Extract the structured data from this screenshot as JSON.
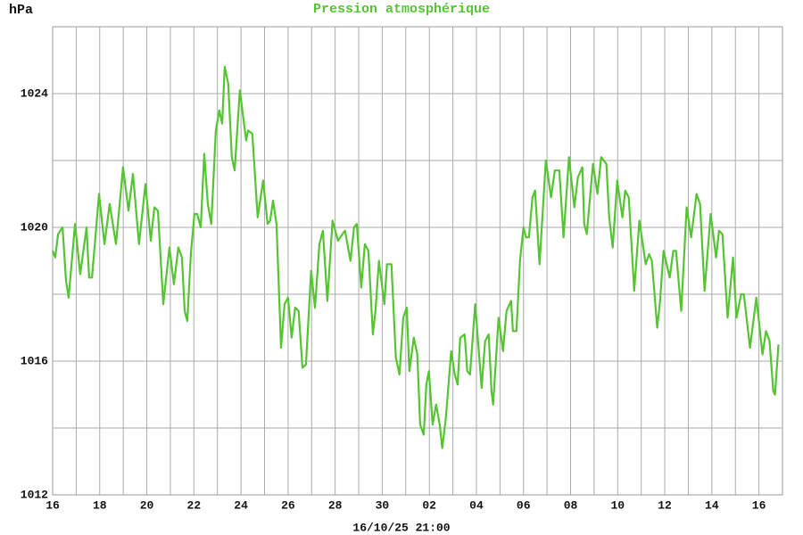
{
  "chart_data": {
    "type": "line",
    "title": "Pression atmosphérique",
    "y_label": "hPa",
    "x_label": "16/10/25 21:00",
    "xlim": [
      0,
      31
    ],
    "ylim": [
      1012,
      1026
    ],
    "xticks": [
      {
        "value": 0,
        "label": "16"
      },
      {
        "value": 2,
        "label": "18"
      },
      {
        "value": 4,
        "label": "20"
      },
      {
        "value": 6,
        "label": "22"
      },
      {
        "value": 8,
        "label": "24"
      },
      {
        "value": 10,
        "label": "26"
      },
      {
        "value": 12,
        "label": "28"
      },
      {
        "value": 14,
        "label": "30"
      },
      {
        "value": 16,
        "label": "02"
      },
      {
        "value": 18,
        "label": "04"
      },
      {
        "value": 20,
        "label": "06"
      },
      {
        "value": 22,
        "label": "08"
      },
      {
        "value": 24,
        "label": "10"
      },
      {
        "value": 26,
        "label": "12"
      },
      {
        "value": 28,
        "label": "14"
      },
      {
        "value": 30,
        "label": "16"
      }
    ],
    "x_minor_ticks": [
      1,
      3,
      5,
      7,
      9,
      11,
      13,
      15,
      17,
      19,
      21,
      23,
      25,
      27,
      29
    ],
    "yticks": [
      1012,
      1016,
      1020,
      1024
    ],
    "y_minor_ticks": [
      1014,
      1018,
      1022
    ],
    "grid": true,
    "series": [
      {
        "name": "Pression",
        "color": "#55c433",
        "x": [
          0,
          0.11,
          0.23,
          0.42,
          0.57,
          0.68,
          0.95,
          1.17,
          1.44,
          1.55,
          1.67,
          1.97,
          2.2,
          2.42,
          2.69,
          2.99,
          3.22,
          3.41,
          3.67,
          3.94,
          4.17,
          4.32,
          4.47,
          4.7,
          4.96,
          5.15,
          5.34,
          5.49,
          5.61,
          5.72,
          5.87,
          6.02,
          6.14,
          6.29,
          6.44,
          6.59,
          6.74,
          6.93,
          7.08,
          7.2,
          7.31,
          7.46,
          7.61,
          7.73,
          7.95,
          8.22,
          8.3,
          8.48,
          8.71,
          8.94,
          9.13,
          9.24,
          9.36,
          9.51,
          9.7,
          9.85,
          10,
          10.15,
          10.3,
          10.45,
          10.61,
          10.76,
          10.98,
          11.14,
          11.33,
          11.48,
          11.67,
          11.89,
          12.12,
          12.31,
          12.42,
          12.65,
          12.8,
          12.92,
          13.11,
          13.26,
          13.41,
          13.6,
          13.71,
          13.86,
          14.09,
          14.2,
          14.39,
          14.58,
          14.73,
          14.89,
          15.04,
          15.15,
          15.34,
          15.49,
          15.61,
          15.76,
          15.87,
          15.98,
          16.14,
          16.29,
          16.44,
          16.55,
          16.7,
          16.93,
          17.08,
          17.2,
          17.31,
          17.5,
          17.61,
          17.73,
          17.95,
          18.22,
          18.37,
          18.52,
          18.64,
          18.71,
          18.94,
          19.13,
          19.28,
          19.47,
          19.55,
          19.7,
          19.85,
          20,
          20.11,
          20.23,
          20.38,
          20.49,
          20.68,
          20.95,
          21.17,
          21.33,
          21.52,
          21.7,
          21.93,
          22.16,
          22.31,
          22.5,
          22.58,
          22.69,
          22.95,
          23.14,
          23.3,
          23.52,
          23.64,
          23.79,
          23.98,
          24.2,
          24.32,
          24.47,
          24.7,
          24.92,
          25.19,
          25.34,
          25.45,
          25.68,
          25.8,
          25.95,
          26.21,
          26.36,
          26.48,
          26.7,
          26.93,
          27.12,
          27.35,
          27.5,
          27.69,
          27.95,
          28.18,
          28.3,
          28.45,
          28.67,
          28.9,
          29.05,
          29.24,
          29.36,
          29.62,
          29.89,
          30.15,
          30.3,
          30.45,
          30.61,
          30.68,
          30.83
        ],
        "values": [
          1019.3,
          1019.1,
          1019.8,
          1020.0,
          1018.4,
          1017.9,
          1020.1,
          1018.6,
          1020.0,
          1018.5,
          1018.5,
          1021.0,
          1019.5,
          1020.7,
          1019.5,
          1021.8,
          1020.5,
          1021.6,
          1019.5,
          1021.3,
          1019.6,
          1020.6,
          1020.5,
          1017.7,
          1019.4,
          1018.3,
          1019.4,
          1019.1,
          1017.5,
          1017.2,
          1019.2,
          1020.4,
          1020.4,
          1020.0,
          1022.2,
          1020.7,
          1020.1,
          1022.9,
          1023.5,
          1023.1,
          1024.8,
          1024.3,
          1022.1,
          1021.7,
          1024.1,
          1022.6,
          1022.9,
          1022.8,
          1020.3,
          1021.4,
          1020.1,
          1020.2,
          1020.8,
          1020.1,
          1016.4,
          1017.7,
          1017.9,
          1016.7,
          1017.6,
          1017.5,
          1015.8,
          1015.9,
          1018.7,
          1017.6,
          1019.5,
          1019.9,
          1017.8,
          1020.2,
          1019.6,
          1019.8,
          1019.9,
          1019.0,
          1020.0,
          1020.1,
          1018.2,
          1019.5,
          1019.3,
          1016.8,
          1017.5,
          1019.0,
          1017.7,
          1018.9,
          1018.9,
          1016.1,
          1015.6,
          1017.3,
          1017.6,
          1015.7,
          1016.7,
          1016.2,
          1014.1,
          1013.8,
          1015.3,
          1015.7,
          1014.1,
          1014.7,
          1014.1,
          1013.4,
          1014.3,
          1016.3,
          1015.6,
          1015.3,
          1016.7,
          1016.8,
          1015.7,
          1015.6,
          1017.7,
          1015.2,
          1016.6,
          1016.8,
          1015.1,
          1014.7,
          1017.3,
          1016.3,
          1017.5,
          1017.8,
          1016.9,
          1016.9,
          1019.0,
          1020.0,
          1019.7,
          1019.7,
          1020.9,
          1021.1,
          1018.9,
          1022.0,
          1020.9,
          1021.7,
          1021.7,
          1019.7,
          1022.1,
          1020.6,
          1021.5,
          1021.8,
          1020.1,
          1019.8,
          1021.9,
          1021.0,
          1022.1,
          1021.9,
          1020.3,
          1019.4,
          1021.4,
          1020.3,
          1021.1,
          1020.9,
          1018.1,
          1020.2,
          1018.9,
          1019.2,
          1019.0,
          1017.0,
          1017.8,
          1019.3,
          1018.5,
          1019.3,
          1019.3,
          1017.5,
          1020.6,
          1019.7,
          1021.0,
          1020.7,
          1018.1,
          1020.4,
          1019.1,
          1019.9,
          1019.8,
          1017.3,
          1019.1,
          1017.3,
          1018.0,
          1018.0,
          1016.4,
          1017.9,
          1016.2,
          1016.9,
          1016.6,
          1015.1,
          1015.0,
          1016.5
        ]
      }
    ]
  }
}
